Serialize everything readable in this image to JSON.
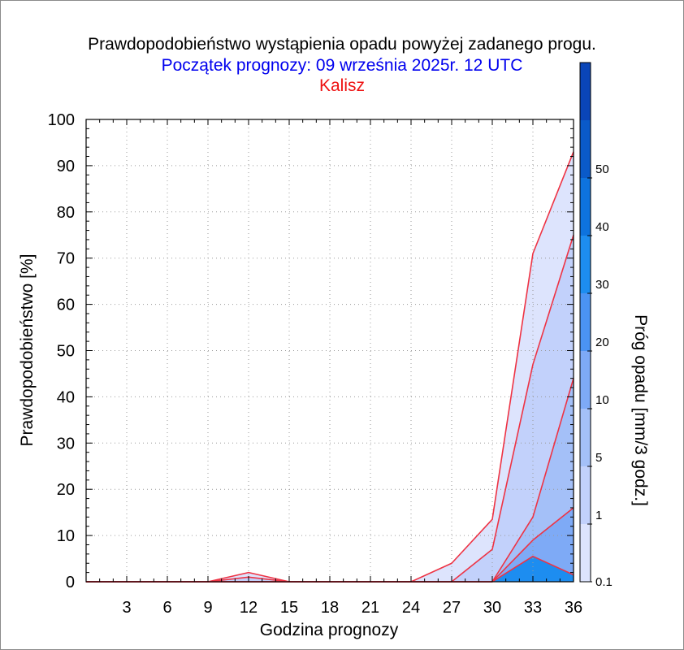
{
  "chart_data": {
    "type": "area",
    "title": "Prawdopodobieństwo wystąpienia opadu powyżej zadanego progu.",
    "subtitle": "Początek prognozy: 09 września 2025r. 12 UTC",
    "location": "Kalisz",
    "xlabel": "Godzina prognozy",
    "ylabel": "Prawdopodobieństwo [%]",
    "colorbar_label": "Próg opadu [mm/3 godz.]",
    "xlim": [
      0,
      36
    ],
    "ylim": [
      0,
      100
    ],
    "x_ticks": [
      "3",
      "6",
      "9",
      "12",
      "15",
      "18",
      "21",
      "24",
      "27",
      "30",
      "33",
      "36"
    ],
    "y_ticks": [
      "0",
      "10",
      "20",
      "30",
      "40",
      "50",
      "60",
      "70",
      "80",
      "90",
      "100"
    ],
    "grid": true,
    "colorbar_ticks": [
      "0.1",
      "1",
      "5",
      "10",
      "20",
      "30",
      "40",
      "50"
    ],
    "colorbar_colors": [
      "#dde4fd",
      "#c2d1fb",
      "#a4c0f8",
      "#7eaaf6",
      "#4b93f3",
      "#1d8df0",
      "#0e73de",
      "#0a5ac9",
      "#0a45b8"
    ],
    "line_color": "#ee3344",
    "x": [
      0,
      3,
      6,
      9,
      12,
      15,
      18,
      21,
      24,
      27,
      30,
      33,
      36
    ],
    "series": [
      {
        "threshold": "0.1",
        "color": "#dde4fd",
        "values": [
          0,
          0,
          0,
          0,
          2,
          0,
          0,
          0,
          0,
          4,
          13.5,
          71,
          93
        ]
      },
      {
        "threshold": "1",
        "color": "#c2d1fb",
        "values": [
          0,
          0,
          0,
          0,
          1,
          0,
          0,
          0,
          0,
          0,
          7,
          47,
          75
        ]
      },
      {
        "threshold": "5",
        "color": "#a4c0f8",
        "values": [
          0,
          0,
          0,
          0,
          0,
          0,
          0,
          0,
          0,
          0,
          0,
          14,
          44
        ]
      },
      {
        "threshold": "10",
        "color": "#7eaaf6",
        "values": [
          0,
          0,
          0,
          0,
          0,
          0,
          0,
          0,
          0,
          0,
          0,
          9,
          16
        ]
      },
      {
        "threshold": "20",
        "color": "#1d8df0",
        "values": [
          0,
          0,
          0,
          0,
          0,
          0,
          0,
          0,
          0,
          0,
          0,
          5.5,
          1.5
        ]
      }
    ]
  }
}
